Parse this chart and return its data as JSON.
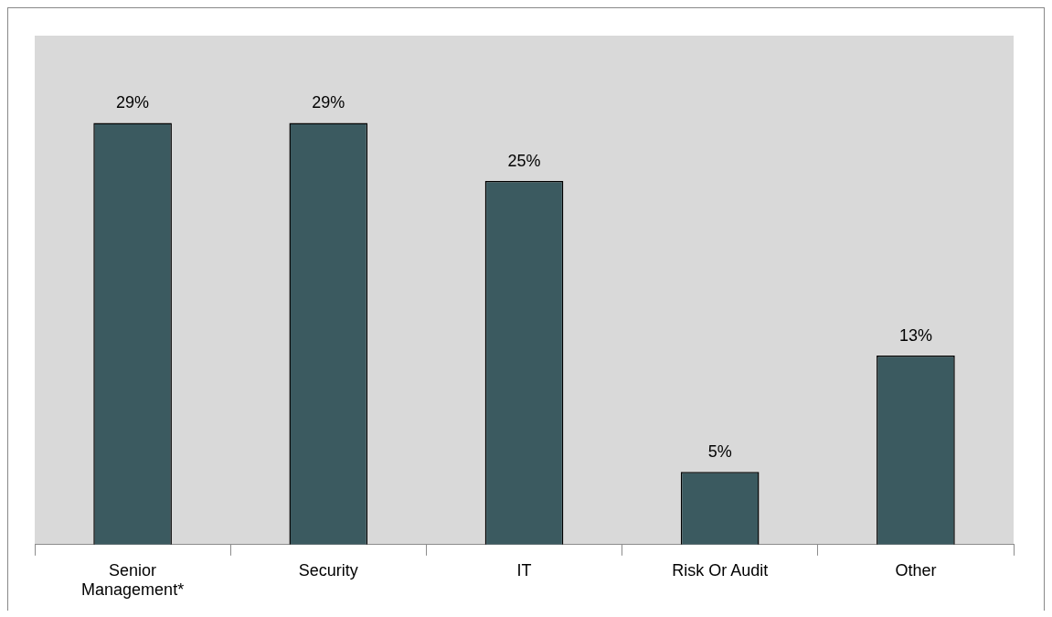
{
  "chart_data": {
    "type": "bar",
    "categories": [
      "Senior Management*",
      "Security",
      "IT",
      "Risk Or Audit",
      "Other"
    ],
    "values": [
      29,
      29,
      25,
      5,
      13
    ],
    "value_labels": [
      "29%",
      "29%",
      "25%",
      "5%",
      "13%"
    ],
    "color": "#3b5a60",
    "ylim": [
      0,
      35
    ],
    "tick_labels": "x",
    "grid": false,
    "legend": false
  }
}
